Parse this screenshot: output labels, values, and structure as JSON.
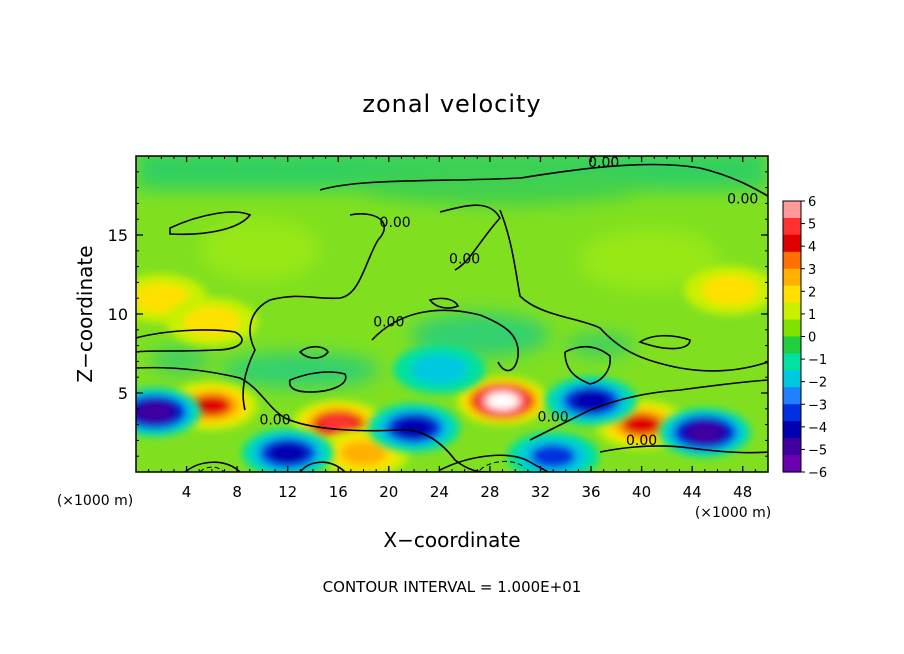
{
  "chart_data": {
    "type": "heatmap",
    "title": "zonal velocity",
    "xlabel": "X−coordinate",
    "ylabel": "Z−coordinate",
    "x_unit": "(×1000 m)",
    "y_unit": "(×1000 m)",
    "xlim": [
      0,
      50
    ],
    "ylim": [
      0,
      20
    ],
    "x_ticks": [
      4,
      8,
      12,
      16,
      20,
      24,
      28,
      32,
      36,
      40,
      44,
      48
    ],
    "x_tick_labels": [
      "4",
      "8",
      "12",
      "16",
      "20",
      "24",
      "28",
      "32",
      "36",
      "40",
      "44",
      "48"
    ],
    "y_ticks": [
      5,
      10,
      15
    ],
    "y_tick_labels": [
      "5",
      "10",
      "15"
    ],
    "colorbar": {
      "min": -6,
      "max": 6,
      "labels": [
        "6",
        "5",
        "4",
        "3",
        "2",
        "1",
        "0",
        "−1",
        "−2",
        "−3",
        "−4",
        "−5",
        "−6"
      ],
      "colors": [
        "#ff9a9a",
        "#ff3030",
        "#e00000",
        "#ff7000",
        "#ffb000",
        "#ffe000",
        "#c8f000",
        "#80e000",
        "#20d040",
        "#00e0a0",
        "#00c8e0",
        "#2080ff",
        "#0030e0",
        "#0000b0",
        "#4000a0",
        "#6a00b0"
      ]
    },
    "features": [
      {
        "x": 29,
        "z": 4.5,
        "value": 7
      },
      {
        "x": 16,
        "z": 3,
        "value": 5
      },
      {
        "x": 6,
        "z": 4.2,
        "value": 4
      },
      {
        "x": 40,
        "z": 3,
        "value": 4
      },
      {
        "x": 18,
        "z": 1.2,
        "value": 3
      },
      {
        "x": 1.5,
        "z": 3.8,
        "value": -5
      },
      {
        "x": 12,
        "z": 1.2,
        "value": -4
      },
      {
        "x": 22,
        "z": 2.8,
        "value": -4
      },
      {
        "x": 36,
        "z": 4.5,
        "value": -4
      },
      {
        "x": 45,
        "z": 2.5,
        "value": -5
      },
      {
        "x": 33,
        "z": 1,
        "value": -3
      },
      {
        "x": 24,
        "z": 6.5,
        "value": -2
      },
      {
        "x": 2,
        "z": 11,
        "value": 2
      },
      {
        "x": 6,
        "z": 9.5,
        "value": 2
      },
      {
        "x": 47,
        "z": 11.5,
        "value": 2
      }
    ],
    "contour_labels": [
      {
        "x": 37,
        "z": 19.3,
        "text": "0.00"
      },
      {
        "x": 48,
        "z": 17,
        "text": "0.00"
      },
      {
        "x": 20.5,
        "z": 15.5,
        "text": "0.00"
      },
      {
        "x": 26,
        "z": 13.2,
        "text": "0.00"
      },
      {
        "x": 20,
        "z": 9.2,
        "text": "0.00"
      },
      {
        "x": 11,
        "z": 3,
        "text": "0.00"
      },
      {
        "x": 33,
        "z": 3.2,
        "text": "0.00"
      },
      {
        "x": 40,
        "z": 1.7,
        "text": "0.00"
      }
    ],
    "footer": "CONTOUR INTERVAL = 1.000E+01"
  }
}
